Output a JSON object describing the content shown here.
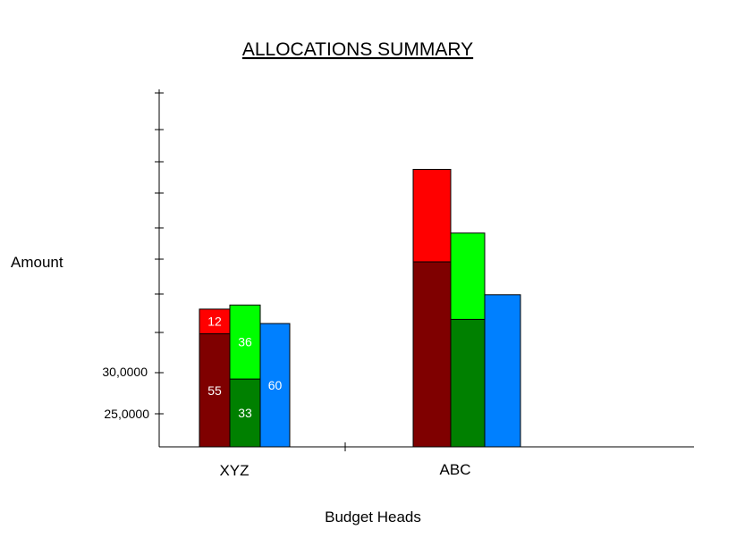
{
  "chart_data": {
    "type": "bar",
    "subtype": "grouped-stacked",
    "title": "ALLOCATIONS SUMMARY",
    "xlabel": "Budget Heads",
    "ylabel": "Amount",
    "y_tick_labels": [
      "30,0000",
      "25,0000"
    ],
    "categories": [
      "XYZ",
      "ABC"
    ],
    "groups": [
      {
        "category": "XYZ",
        "bars": [
          {
            "segments": [
              {
                "value": 55,
                "label": "55",
                "color": "#7f0000"
              },
              {
                "value": 12,
                "label": "12",
                "color": "#ff0000"
              }
            ]
          },
          {
            "segments": [
              {
                "value": 33,
                "label": "33",
                "color": "#008000"
              },
              {
                "value": 36,
                "label": "36",
                "color": "#00ff00"
              }
            ]
          },
          {
            "segments": [
              {
                "value": 60,
                "label": "60",
                "color": "#0080ff"
              }
            ]
          }
        ]
      },
      {
        "category": "ABC",
        "bars": [
          {
            "segments": [
              {
                "value": 90,
                "label": "",
                "color": "#7f0000"
              },
              {
                "value": 45,
                "label": "",
                "color": "#ff0000"
              }
            ]
          },
          {
            "segments": [
              {
                "value": 62,
                "label": "",
                "color": "#008000"
              },
              {
                "value": 42,
                "label": "",
                "color": "#00ff00"
              }
            ]
          },
          {
            "segments": [
              {
                "value": 74,
                "label": "",
                "color": "#0080ff"
              }
            ]
          }
        ]
      }
    ],
    "colors": {
      "dark_red": "#7f0000",
      "red": "#ff0000",
      "dark_green": "#008000",
      "green": "#00ff00",
      "blue": "#0080ff"
    },
    "grid": false,
    "legend": "none"
  }
}
